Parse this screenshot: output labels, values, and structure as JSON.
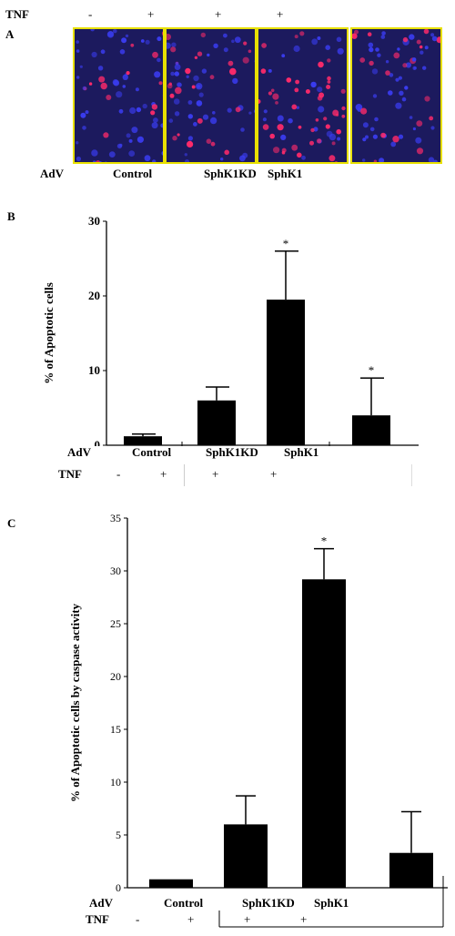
{
  "panel_a": {
    "letter": "A",
    "tnf_label": "TNF",
    "tnf_signs": [
      "-",
      "+",
      "+",
      "+"
    ],
    "adv_label": "AdV",
    "group_labels": [
      "Control",
      "SphK1KD",
      "SphK1"
    ],
    "images": [
      {
        "kind": "fluorescence micrograph",
        "red_density": 0.15
      },
      {
        "kind": "fluorescence micrograph",
        "red_density": 0.45
      },
      {
        "kind": "fluorescence micrograph",
        "red_density": 0.6
      },
      {
        "kind": "fluorescence micrograph",
        "red_density": 0.3
      }
    ],
    "colors": {
      "border": "#e8e000",
      "background": "#1c1a5e",
      "nuclei": "#3a3cf0",
      "apoptotic": "#ff2a6a"
    }
  },
  "panel_b": {
    "letter": "B",
    "adv_label": "AdV",
    "tnf_label": "TNF",
    "group_labels": [
      "Control",
      "SphK1KD",
      "SphK1"
    ],
    "tnf_signs": [
      "-",
      "+",
      "+",
      "+"
    ]
  },
  "panel_c": {
    "letter": "C",
    "adv_label": "AdV",
    "tnf_label": "TNF",
    "group_labels": [
      "Control",
      "SphK1KD",
      "SphK1"
    ],
    "tnf_signs": [
      "-",
      "+",
      "+",
      "+"
    ]
  },
  "chart_data": [
    {
      "type": "bar",
      "ylabel": "% of Apoptotic cells",
      "ylim": [
        0,
        30
      ],
      "yticks": [
        0,
        10,
        20,
        30
      ],
      "ytick_labels": [
        "0",
        "10",
        "20",
        "30"
      ],
      "values": [
        1.2,
        6.0,
        19.5,
        4.0
      ],
      "errors": [
        0.3,
        1.8,
        6.5,
        5.0
      ],
      "significance": [
        "",
        "",
        "*",
        "*"
      ],
      "bar_color": "#000000",
      "grid": false
    },
    {
      "type": "bar",
      "ylabel": "% of Apoptotic cells by  caspase activity",
      "ylim": [
        0,
        35
      ],
      "yticks": [
        0,
        5,
        10,
        15,
        20,
        25,
        30,
        35
      ],
      "ytick_labels": [
        "0",
        "5",
        "10",
        "15",
        "20",
        "25",
        "30",
        "35"
      ],
      "values": [
        0.8,
        6.0,
        29.2,
        3.3
      ],
      "errors": [
        0.0,
        2.7,
        2.9,
        3.9
      ],
      "significance": [
        "",
        "",
        "*",
        ""
      ],
      "bar_color": "#000000",
      "grid": false
    }
  ]
}
